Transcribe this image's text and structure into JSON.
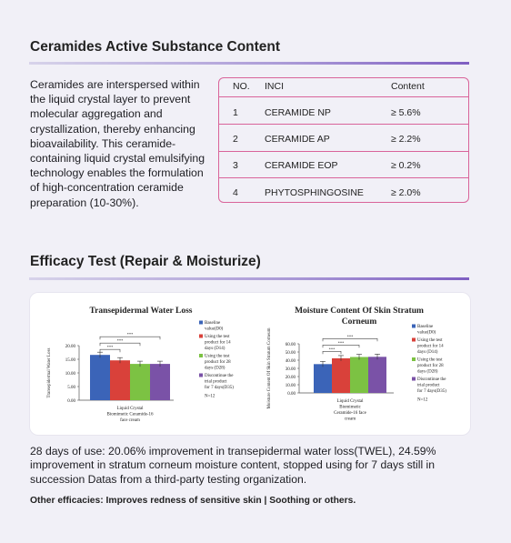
{
  "section1": {
    "title": "Ceramides Active Substance Content"
  },
  "intro_text": "Ceramides are interspersed within the liquid crystal layer to prevent molecular aggregation and crystallization, thereby enhancing bioavailability. This ceramide-containing liquid crystal emulsifying technology enables the formulation of high-concentration ceramide preparation (10-30%).",
  "table": {
    "headers": {
      "no": "NO.",
      "inci": "INCI",
      "content": "Content"
    },
    "rows": [
      {
        "no": "1",
        "inci": "CERAMIDE NP",
        "content": "≥ 5.6%"
      },
      {
        "no": "2",
        "inci": "CERAMIDE AP",
        "content": "≥ 2.2%"
      },
      {
        "no": "3",
        "inci": "CERAMIDE EOP",
        "content": "≥ 0.2%"
      },
      {
        "no": "4",
        "inci": "PHYTOSPHINGOSINE",
        "content": "≥ 2.0%"
      }
    ],
    "border_color": "#d9649a"
  },
  "section2": {
    "title": "Efficacy Test (Repair & Moisturize)"
  },
  "chart_data": [
    {
      "type": "bar",
      "title": "Transepidermal Water Loss",
      "ylabel": "Transepidermal Water Loss",
      "xlabel": "Liquid Crystal Biomimetic Ceramide-16 face cream",
      "ylim": [
        0,
        20
      ],
      "yticks": [
        "0.00",
        "5.00",
        "10.00",
        "15.00",
        "20.00"
      ],
      "series": [
        {
          "name": "Baseline value(D0)",
          "color": "#3b64b8",
          "values": [
            16.6
          ]
        },
        {
          "name": "Using the test product for 14 days (D14)",
          "color": "#d9413a",
          "values": [
            14.6
          ]
        },
        {
          "name": "Using the test product for 28 days (D28)",
          "color": "#7cc243",
          "values": [
            13.3
          ]
        },
        {
          "name": "Discontinue the trial product for 7 days(D35)",
          "color": "#7a52a7",
          "values": [
            13.3
          ]
        }
      ],
      "annotations": [
        "***",
        "***",
        "***",
        "N=12"
      ]
    },
    {
      "type": "bar",
      "title": "Moisture Content Of Skin Stratum Corneum",
      "ylabel": "Moisture Content Of Skin Stratum Corneum",
      "xlabel": "Liquid Crystal Biomimetic Ceramide-16 face cream",
      "ylim": [
        0,
        60
      ],
      "yticks": [
        "0.00",
        "10.00",
        "20.00",
        "30.00",
        "40.00",
        "50.00",
        "60.00"
      ],
      "series": [
        {
          "name": "Baseline value(D0)",
          "color": "#3b64b8",
          "values": [
            35.2
          ]
        },
        {
          "name": "Using the test product for 14 days (D14)",
          "color": "#d9413a",
          "values": [
            42.3
          ]
        },
        {
          "name": "Using the test product for 28 days (D28)",
          "color": "#7cc243",
          "values": [
            43.9
          ]
        },
        {
          "name": "Discontinue the trial product for 7 days(D35)",
          "color": "#7a52a7",
          "values": [
            44.1
          ]
        }
      ],
      "annotations": [
        "***",
        "***",
        "***",
        "N=12"
      ]
    }
  ],
  "summary_text": "28 days of use: 20.06% improvement in transepidermal water loss(TWEL), 24.59% improvement in stratum corneum moisture content, stopped using for 7 days still in succession Datas from a third-party testing organization.",
  "other_text": "Other efficacies: Improves redness of sensitive skin | Soothing or others."
}
